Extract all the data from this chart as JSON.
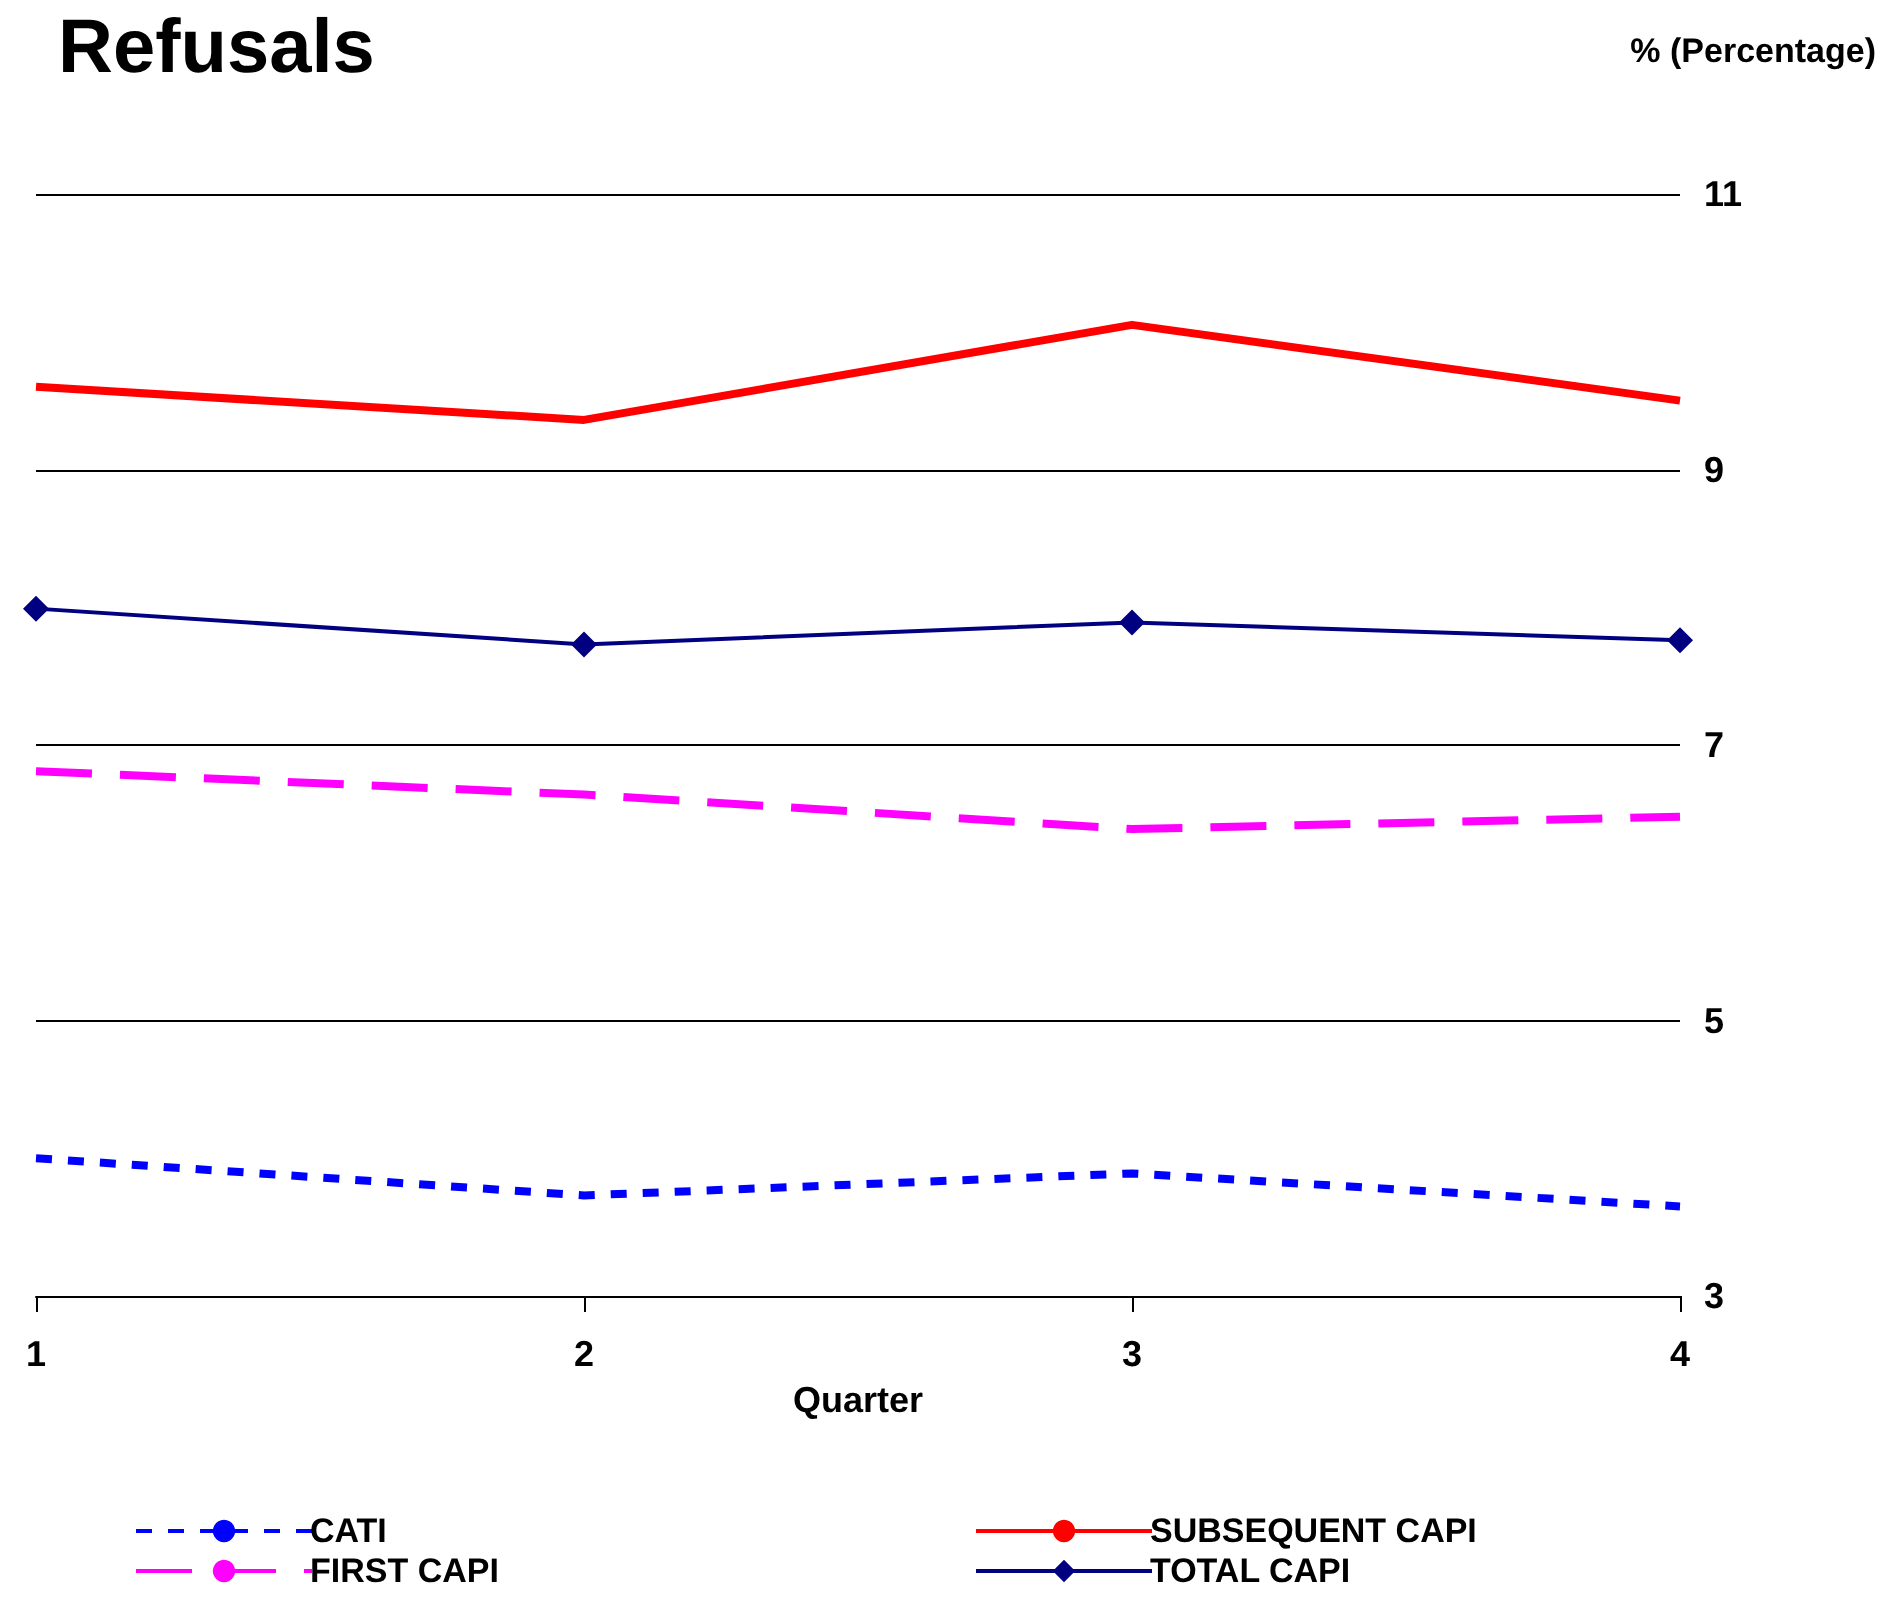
{
  "chart_data": {
    "type": "line",
    "title": "Refusals",
    "ylabel": "% (Percentage)",
    "xlabel": "Quarter",
    "x": [
      1,
      2,
      3,
      4
    ],
    "xlim": [
      1,
      4
    ],
    "xticks": [
      1,
      2,
      3,
      4
    ],
    "ylim": [
      3,
      11
    ],
    "yticks": [
      3,
      5,
      7,
      9,
      11
    ],
    "grid": "y",
    "legend": "bottom",
    "series": [
      {
        "name": "CATI",
        "color": "#0000ff",
        "line_style": "dotted",
        "marker": "none",
        "values": [
          4.0,
          3.73,
          3.89,
          3.65
        ]
      },
      {
        "name": "SUBSEQUENT CAPI",
        "color": "#ff0000",
        "line_style": "solid",
        "marker": "none",
        "values": [
          9.6,
          9.36,
          10.05,
          9.5
        ]
      },
      {
        "name": "FIRST CAPI",
        "color": "#ff00ff",
        "line_style": "dashed",
        "marker": "none",
        "values": [
          6.81,
          6.64,
          6.39,
          6.48
        ]
      },
      {
        "name": "TOTAL CAPI",
        "color": "#000080",
        "line_style": "solid",
        "marker": "diamond",
        "values": [
          7.99,
          7.73,
          7.89,
          7.76
        ]
      }
    ]
  }
}
